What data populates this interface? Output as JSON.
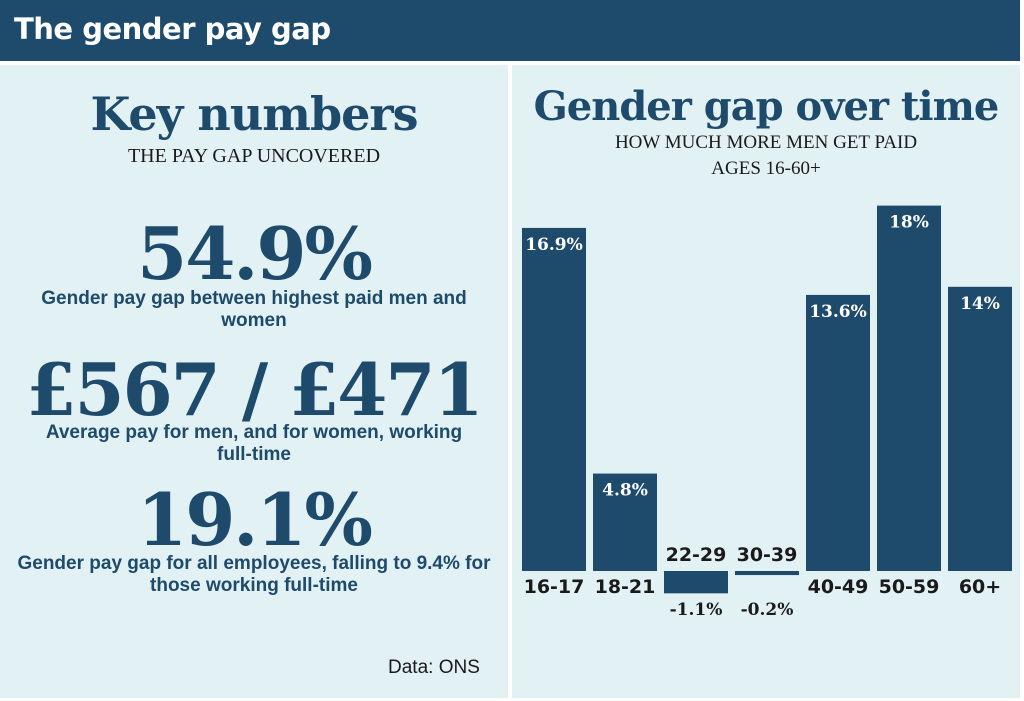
{
  "header": {
    "title": "The gender pay gap"
  },
  "key_numbers": {
    "heading": "Key numbers",
    "subheading": "THE PAY GAP UNCOVERED",
    "stats": [
      {
        "value": "54.9%",
        "description": "Gender pay gap between highest paid men and women"
      },
      {
        "value": "£567 / £471",
        "description": "Average pay for men, and for women, working full-time"
      },
      {
        "value": "19.1%",
        "description": "Gender pay gap for all employees, falling to 9.4% for those working full-time"
      }
    ],
    "source": "Data: ONS"
  },
  "chart_data": {
    "type": "bar",
    "title": "Gender gap over time",
    "subtitle": "HOW MUCH MORE MEN GET PAID",
    "subtitle2": "AGES 16-60+",
    "categories": [
      "16-17",
      "18-21",
      "22-29",
      "30-39",
      "40-49",
      "50-59",
      "60+"
    ],
    "values": [
      16.9,
      4.8,
      -1.1,
      -0.2,
      13.6,
      18,
      14
    ],
    "data_labels": [
      "16.9%",
      "4.8%",
      "-1.1%",
      "-0.2%",
      "13.6%",
      "18%",
      "14%"
    ],
    "ylim": [
      -1.1,
      18
    ],
    "grid": false,
    "bar_color": "#1e4a6b"
  }
}
